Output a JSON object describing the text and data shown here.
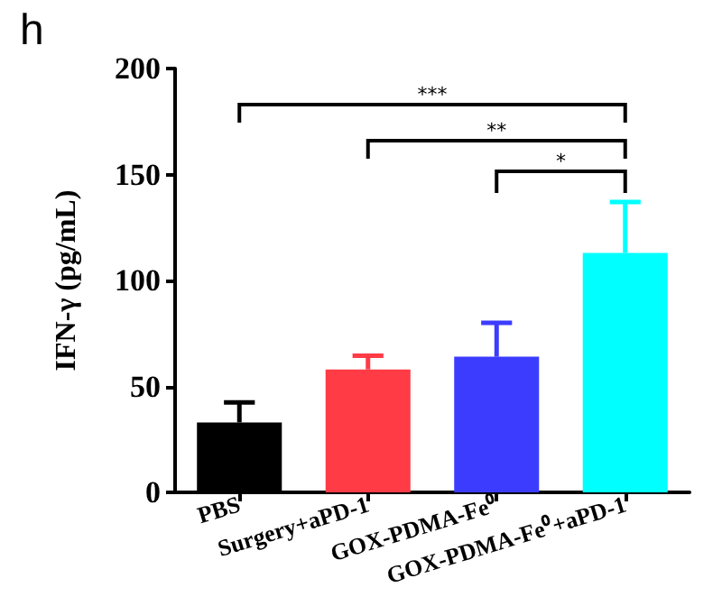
{
  "chart_data": {
    "type": "bar",
    "title": "h",
    "ylabel": "IFN-γ (pg/mL)",
    "categories": [
      "PBS",
      "Surgery+aPD-1",
      "GOX-PDMA-Fe⁰",
      "GOX-PDMA-Fe⁰+aPD-1"
    ],
    "values": [
      33,
      58,
      64,
      113
    ],
    "colors": [
      "#000000",
      "#ff3b45",
      "#3c3cff",
      "#00ffff"
    ],
    "errors": [
      [
        33,
        42.5
      ],
      [
        58,
        64.5
      ],
      [
        64,
        80
      ],
      [
        113,
        137
      ]
    ],
    "ylim": [
      0,
      200
    ],
    "yticks": [
      0,
      50,
      100,
      150,
      200
    ],
    "grid": false,
    "annotations": [
      "***",
      "**",
      "*"
    ]
  }
}
